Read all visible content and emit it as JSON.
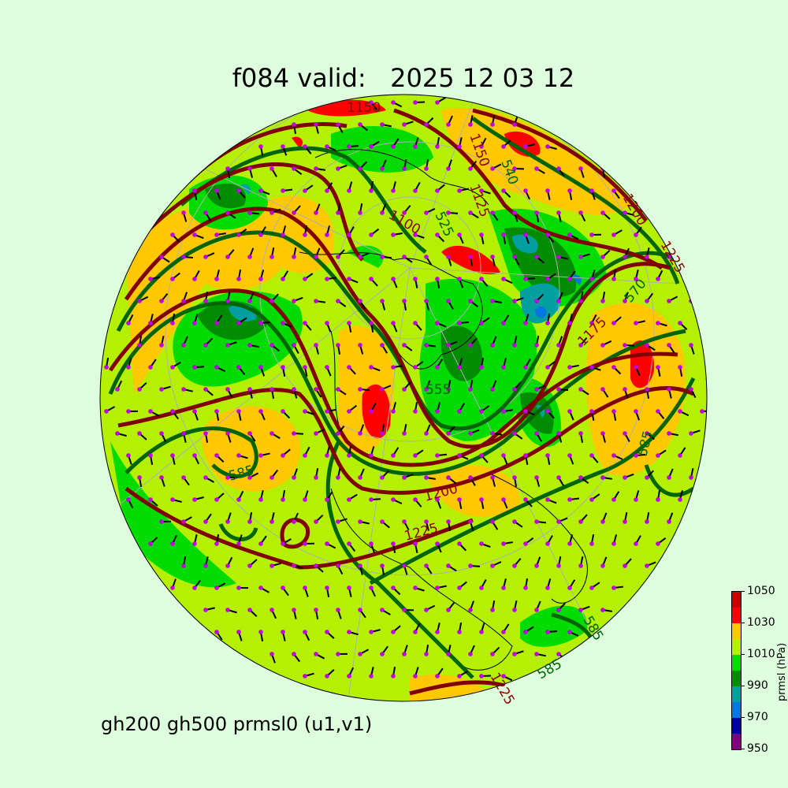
{
  "title": "f084 valid:   2025 12 03 12",
  "subtitle": "gh200 gh500 prmsl0 (u1,v1)",
  "colorbar": {
    "label": "prmsl (hPa)",
    "ticks": [
      "950",
      "970",
      "990",
      "1010",
      "1030",
      "1050"
    ],
    "levels": [
      950,
      960,
      970,
      980,
      990,
      1000,
      1010,
      1020,
      1030,
      1040,
      1050
    ],
    "colors": [
      "#7f007f",
      "#0000a0",
      "#0078e0",
      "#00a0a0",
      "#008c00",
      "#00dc00",
      "#b4f000",
      "#ffc800",
      "#ff0000",
      "#c80000"
    ]
  },
  "map": {
    "projection": "orthographic (north polar view)",
    "fields": [
      "prmsl filled contours",
      "gh200 contours (dark red)",
      "gh500 contours (dark green)",
      "wind barbs u1,v1",
      "coastlines",
      "lat/lon grid"
    ],
    "gh200_color": "#800000",
    "gh500_color": "#006400",
    "contour_labels": {
      "gh200": [
        "1150",
        "1125",
        "1100",
        "1175",
        "1200",
        "1200",
        "1225",
        "1225",
        "1225",
        "1150"
      ],
      "gh500": [
        "540",
        "525",
        "570",
        "585",
        "585",
        "585",
        "555",
        "585"
      ]
    }
  }
}
